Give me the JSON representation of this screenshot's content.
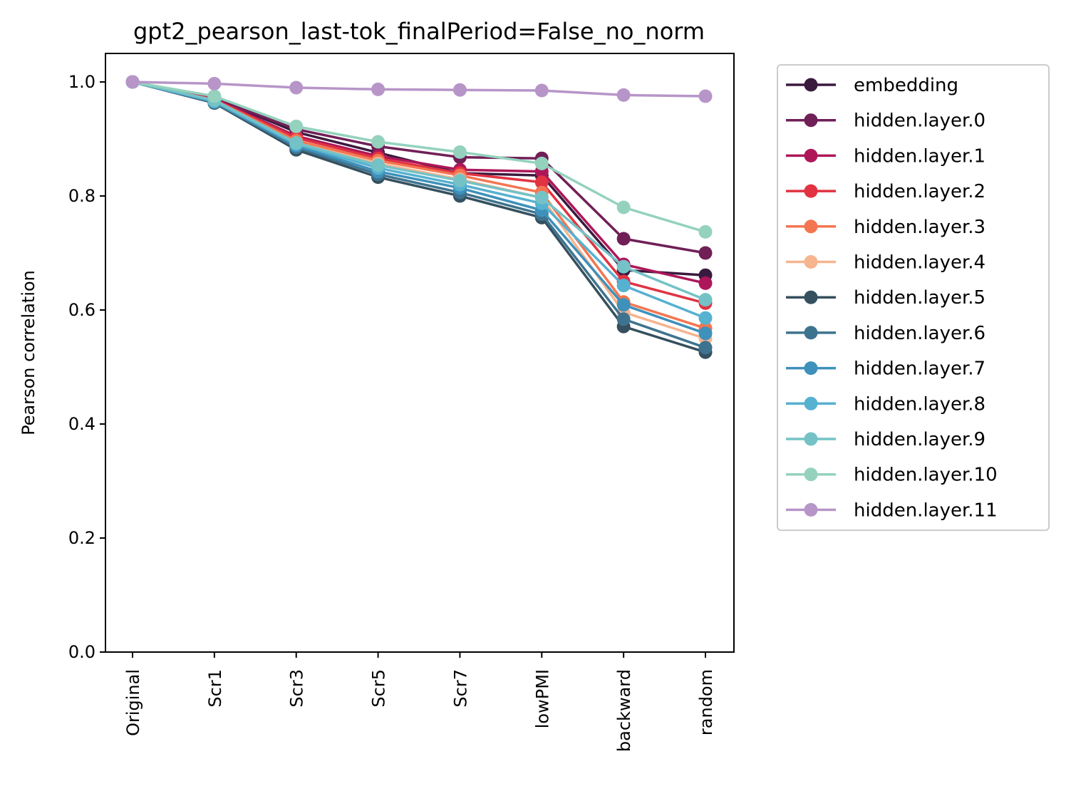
{
  "chart_data": {
    "type": "line",
    "title": "gpt2_pearson_last-tok_finalPeriod=False_no_norm",
    "xlabel": "",
    "ylabel": "Pearson correlation",
    "categories": [
      "Original",
      "Scr1",
      "Scr3",
      "Scr5",
      "Scr7",
      "lowPMI",
      "backward",
      "random"
    ],
    "ylim": [
      0.0,
      1.05
    ],
    "yticks": [
      0.0,
      0.2,
      0.4,
      0.6,
      0.8,
      1.0
    ],
    "ytick_labels": [
      "0.0",
      "0.2",
      "0.4",
      "0.6",
      "0.8",
      "1.0"
    ],
    "grid": false,
    "legend_position": "outside right, top",
    "series": [
      {
        "name": "embedding",
        "color": "#3b1a3f",
        "values": [
          1.0,
          0.972,
          0.912,
          0.876,
          0.84,
          0.836,
          0.67,
          0.661
        ]
      },
      {
        "name": "hidden.layer.0",
        "color": "#701f57",
        "values": [
          1.0,
          0.971,
          0.917,
          0.887,
          0.868,
          0.866,
          0.725,
          0.7
        ]
      },
      {
        "name": "hidden.layer.1",
        "color": "#ad1759",
        "values": [
          1.0,
          0.97,
          0.905,
          0.87,
          0.846,
          0.843,
          0.68,
          0.647
        ]
      },
      {
        "name": "hidden.layer.2",
        "color": "#e13342",
        "values": [
          1.0,
          0.969,
          0.902,
          0.866,
          0.84,
          0.824,
          0.65,
          0.612
        ]
      },
      {
        "name": "hidden.layer.3",
        "color": "#f37651",
        "values": [
          1.0,
          0.968,
          0.897,
          0.862,
          0.836,
          0.806,
          0.614,
          0.568
        ]
      },
      {
        "name": "hidden.layer.4",
        "color": "#f6b48f",
        "values": [
          1.0,
          0.967,
          0.893,
          0.857,
          0.829,
          0.797,
          0.596,
          0.55
        ]
      },
      {
        "name": "hidden.layer.5",
        "color": "#35505e",
        "values": [
          1.0,
          0.963,
          0.881,
          0.833,
          0.8,
          0.762,
          0.571,
          0.526
        ]
      },
      {
        "name": "hidden.layer.6",
        "color": "#3e738f",
        "values": [
          1.0,
          0.964,
          0.885,
          0.838,
          0.806,
          0.768,
          0.584,
          0.534
        ]
      },
      {
        "name": "hidden.layer.7",
        "color": "#3e91bb",
        "values": [
          1.0,
          0.965,
          0.888,
          0.843,
          0.814,
          0.775,
          0.609,
          0.559
        ]
      },
      {
        "name": "hidden.layer.8",
        "color": "#57b1d0",
        "values": [
          1.0,
          0.966,
          0.891,
          0.849,
          0.82,
          0.787,
          0.643,
          0.586
        ]
      },
      {
        "name": "hidden.layer.9",
        "color": "#74c2c6",
        "values": [
          1.0,
          0.968,
          0.893,
          0.854,
          0.827,
          0.797,
          0.676,
          0.618
        ]
      },
      {
        "name": "hidden.layer.10",
        "color": "#94d2be",
        "values": [
          1.0,
          0.975,
          0.922,
          0.895,
          0.877,
          0.857,
          0.78,
          0.737
        ]
      },
      {
        "name": "hidden.layer.11",
        "color": "#b795c8",
        "values": [
          1.0,
          0.997,
          0.99,
          0.987,
          0.986,
          0.985,
          0.977,
          0.975
        ]
      }
    ]
  }
}
